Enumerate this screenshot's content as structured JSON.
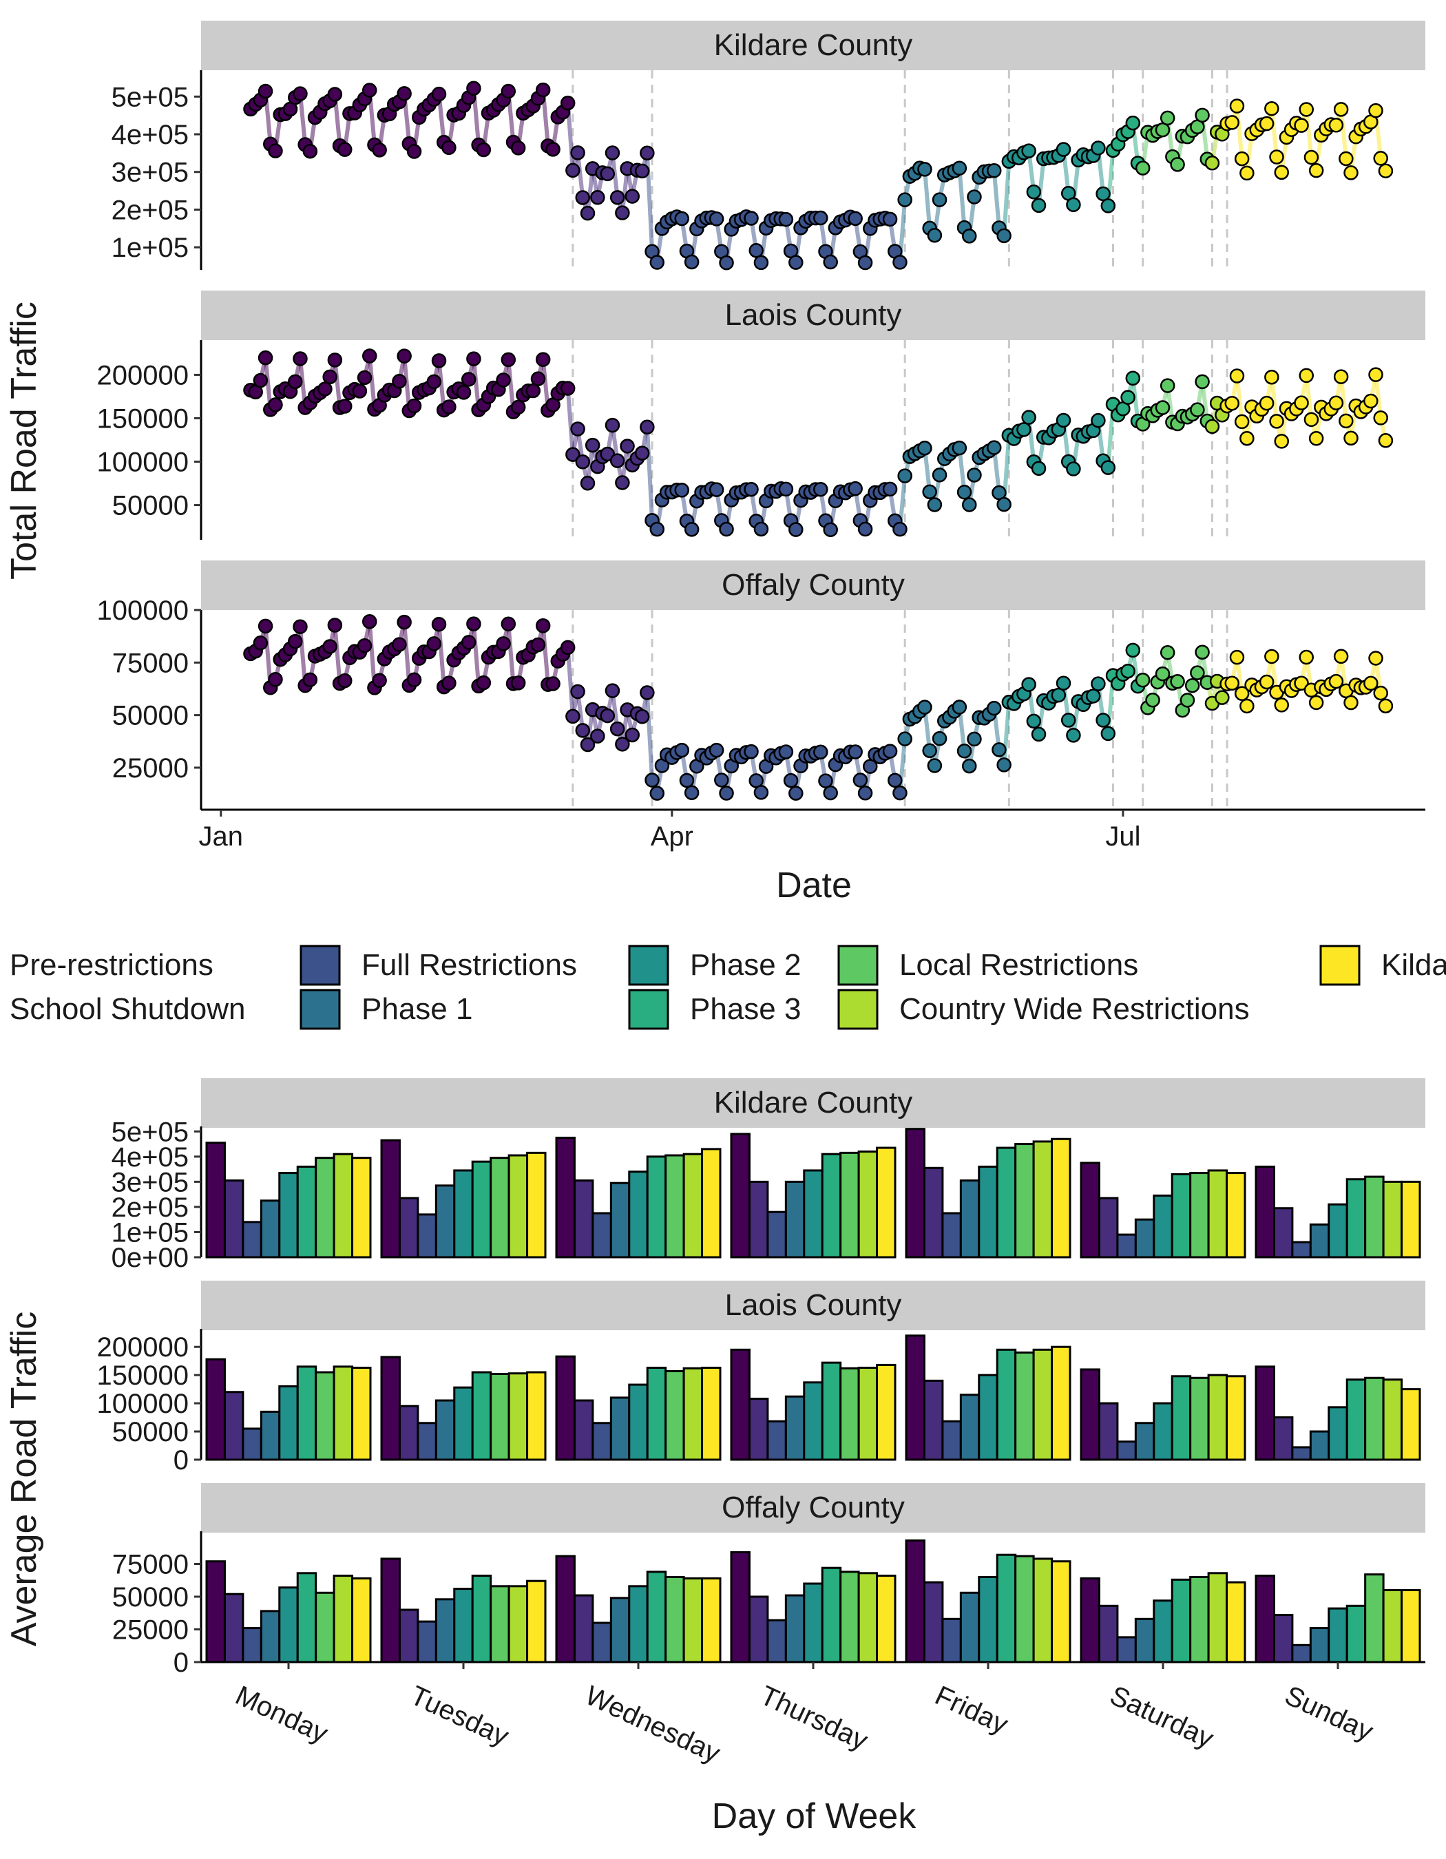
{
  "figure": {
    "top": {
      "y_axis_title": "Total Road Traffic",
      "x_axis_title": "Date",
      "x_ticks": [
        "Jan",
        "Apr",
        "Jul"
      ]
    },
    "bottom": {
      "y_axis_title": "Average Road Traffic",
      "x_axis_title": "Day of Week"
    }
  },
  "colors": {
    "Pre-restrictions": "#440154",
    "School Shutdown": "#472d7b",
    "Full Restrictions": "#3b528b",
    "Phase 1": "#2c728e",
    "Phase 2": "#21918c",
    "Phase 3": "#28ae80",
    "Local Restrictions": "#5ec962",
    "Country Wide Restrictions": "#addc30",
    "Kildare Restrictions": "#fde725",
    "strip_bg": "#cccccc",
    "vline": "#c8c8c8"
  },
  "legend": {
    "items": [
      "Pre-restrictions",
      "School Shutdown",
      "Full Restrictions",
      "Phase 1",
      "Phase 2",
      "Phase 3",
      "Local Restrictions",
      "Country Wide Restrictions",
      "Kildare Restrictions"
    ]
  },
  "chart_data": [
    {
      "type": "line",
      "title": "",
      "facet_by": "county",
      "xlabel": "Date",
      "ylabel": "Total Road Traffic",
      "x_ticks": [
        "Jan",
        "Apr",
        "Jul"
      ],
      "xlim": [
        "2019-12-28",
        "2020-08-31"
      ],
      "phase_boundaries": [
        "2020-03-12",
        "2020-03-28",
        "2020-05-18",
        "2020-06-08",
        "2020-06-29",
        "2020-07-05",
        "2020-07-19",
        "2020-07-22"
      ],
      "phases": [
        {
          "name": "Pre-restrictions",
          "start": "2020-01-07",
          "end": "2020-03-11"
        },
        {
          "name": "School Shutdown",
          "start": "2020-03-12",
          "end": "2020-03-27"
        },
        {
          "name": "Full Restrictions",
          "start": "2020-03-28",
          "end": "2020-05-17"
        },
        {
          "name": "Phase 1",
          "start": "2020-05-18",
          "end": "2020-06-07"
        },
        {
          "name": "Phase 2",
          "start": "2020-06-08",
          "end": "2020-06-28"
        },
        {
          "name": "Phase 3",
          "start": "2020-06-29",
          "end": "2020-07-04"
        },
        {
          "name": "Local Restrictions",
          "start": "2020-07-05",
          "end": "2020-07-18"
        },
        {
          "name": "Country Wide Restrictions",
          "start": "2020-07-19",
          "end": "2020-07-21"
        },
        {
          "name": "Kildare Restrictions",
          "start": "2020-07-22",
          "end": "2020-08-23"
        }
      ],
      "start_date": "2020-01-07",
      "end_date": "2020-08-23",
      "series": [
        {
          "name": "Kildare County",
          "y_ticks": [
            "1e+05",
            "2e+05",
            "3e+05",
            "4e+05",
            "5e+05"
          ],
          "ylim": [
            40000,
            570000
          ],
          "weekday_levels": {
            "Pre-restrictions": [
              450000,
              462000,
              475000,
              490000,
              515000,
              375000,
              360000
            ],
            "School Shutdown": [
              305000,
              235000,
              300000,
              300000,
              345000,
              230000,
              190000
            ],
            "Full Restrictions": [
              150000,
              170000,
              175000,
              178000,
              175000,
              90000,
              60000
            ],
            "Phase 1": [
              230000,
              290000,
              300000,
              305000,
              305000,
              150000,
              130000
            ],
            "Phase 2": [
              330000,
              340000,
              340000,
              345000,
              360000,
              245000,
              210000
            ],
            "Phase 3": [
              360000,
              380000,
              400000,
              410000,
              430000,
              325000,
              305000
            ],
            "Local Restrictions": [
              400000,
              395000,
              405000,
              415000,
              450000,
              335000,
              315000
            ],
            "Country Wide Restrictions": [
              410000,
              400000,
              410000,
              415000,
              460000,
              340000,
              320000
            ],
            "Kildare Restrictions": [
              395000,
              415000,
              425000,
              430000,
              470000,
              335000,
              300000
            ]
          }
        },
        {
          "name": "Laois County",
          "y_ticks": [
            "50000",
            "100000",
            "150000",
            "200000"
          ],
          "ylim": [
            10000,
            240000
          ],
          "weekday_levels": {
            "Pre-restrictions": [
              178000,
              182000,
              183000,
              195000,
              220000,
              160000,
              165000
            ],
            "School Shutdown": [
              120000,
              95000,
              105000,
              108000,
              140000,
              100000,
              75000
            ],
            "Full Restrictions": [
              55000,
              65000,
              65000,
              68000,
              68000,
              32000,
              22000
            ],
            "Phase 1": [
              85000,
              105000,
              110000,
              112000,
              115000,
              65000,
              50000
            ],
            "Phase 2": [
              130000,
              128000,
              133000,
              137000,
              150000,
              100000,
              93000
            ],
            "Phase 3": [
              165000,
              155000,
              163000,
              172000,
              195000,
              148000,
              142000
            ],
            "Local Restrictions": [
              155000,
              152000,
              157000,
              162000,
              190000,
              145000,
              145000
            ],
            "Country Wide Restrictions": [
              165000,
              153000,
              162000,
              163000,
              195000,
              150000,
              142000
            ],
            "Kildare Restrictions": [
              163000,
              155000,
              163000,
              168000,
              200000,
              148000,
              125000
            ]
          }
        },
        {
          "name": "Offaly County",
          "y_ticks": [
            "25000",
            "50000",
            "75000",
            "100000"
          ],
          "ylim": [
            5000,
            100000
          ],
          "weekday_levels": {
            "Pre-restrictions": [
              77000,
              79000,
              81000,
              84000,
              93000,
              64000,
              66000
            ],
            "School Shutdown": [
              52000,
              40000,
              51000,
              50000,
              61000,
              43000,
              36000
            ],
            "Full Restrictions": [
              26000,
              31000,
              30000,
              32000,
              33000,
              19000,
              13000
            ],
            "Phase 1": [
              39000,
              48000,
              49000,
              51000,
              53000,
              33000,
              26000
            ],
            "Phase 2": [
              57000,
              56000,
              58000,
              60000,
              65000,
              47000,
              41000
            ],
            "Phase 3": [
              68000,
              66000,
              69000,
              72000,
              82000,
              63000,
              43000
            ],
            "Local Restrictions": [
              53000,
              58000,
              65000,
              69000,
              81000,
              65000,
              67000
            ],
            "Country Wide Restrictions": [
              66000,
              58000,
              64000,
              68000,
              79000,
              68000,
              55000
            ],
            "Kildare Restrictions": [
              64000,
              62000,
              64000,
              66000,
              77000,
              61000,
              55000
            ]
          }
        }
      ]
    },
    {
      "type": "bar",
      "title": "",
      "facet_by": "county",
      "xlabel": "Day of Week",
      "ylabel": "Average Road Traffic",
      "categories": [
        "Monday",
        "Tuesday",
        "Wednesday",
        "Thursday",
        "Friday",
        "Saturday",
        "Sunday"
      ],
      "groups": [
        "Pre-restrictions",
        "School Shutdown",
        "Full Restrictions",
        "Phase 1",
        "Phase 2",
        "Phase 3",
        "Local Restrictions",
        "Country Wide Restrictions",
        "Kildare Restrictions"
      ],
      "series": [
        {
          "name": "Kildare County",
          "y_ticks": [
            "0e+00",
            "1e+05",
            "2e+05",
            "3e+05",
            "4e+05",
            "5e+05"
          ],
          "ylim": [
            0,
            520000
          ],
          "values": {
            "Monday": [
              455000,
              305000,
              140000,
              225000,
              335000,
              360000,
              395000,
              410000,
              395000
            ],
            "Tuesday": [
              465000,
              235000,
              170000,
              285000,
              345000,
              380000,
              395000,
              405000,
              415000
            ],
            "Wednesday": [
              475000,
              305000,
              175000,
              295000,
              340000,
              400000,
              405000,
              410000,
              430000
            ],
            "Thursday": [
              490000,
              300000,
              180000,
              300000,
              345000,
              410000,
              415000,
              420000,
              435000
            ],
            "Friday": [
              510000,
              355000,
              175000,
              305000,
              360000,
              435000,
              450000,
              460000,
              470000
            ],
            "Saturday": [
              375000,
              235000,
              90000,
              150000,
              245000,
              330000,
              335000,
              345000,
              335000
            ],
            "Sunday": [
              360000,
              195000,
              60000,
              130000,
              210000,
              310000,
              320000,
              300000,
              300000
            ]
          }
        },
        {
          "name": "Laois County",
          "y_ticks": [
            "0",
            "50000",
            "100000",
            "150000",
            "200000"
          ],
          "ylim": [
            0,
            232000
          ],
          "values": {
            "Monday": [
              178000,
              120000,
              55000,
              85000,
              130000,
              165000,
              155000,
              165000,
              163000
            ],
            "Tuesday": [
              182000,
              95000,
              65000,
              105000,
              128000,
              155000,
              152000,
              153000,
              155000
            ],
            "Wednesday": [
              183000,
              105000,
              65000,
              110000,
              133000,
              163000,
              157000,
              162000,
              163000
            ],
            "Thursday": [
              195000,
              108000,
              68000,
              112000,
              137000,
              172000,
              162000,
              163000,
              168000
            ],
            "Friday": [
              220000,
              140000,
              68000,
              115000,
              150000,
              195000,
              190000,
              195000,
              200000
            ],
            "Saturday": [
              160000,
              100000,
              32000,
              65000,
              100000,
              148000,
              145000,
              150000,
              148000
            ],
            "Sunday": [
              165000,
              75000,
              22000,
              50000,
              93000,
              142000,
              145000,
              142000,
              125000
            ]
          }
        },
        {
          "name": "Offaly County",
          "y_ticks": [
            "0",
            "25000",
            "50000",
            "75000"
          ],
          "ylim": [
            0,
            100000
          ],
          "values": {
            "Monday": [
              77000,
              52000,
              26000,
              39000,
              57000,
              68000,
              53000,
              66000,
              64000
            ],
            "Tuesday": [
              79000,
              40000,
              31000,
              48000,
              56000,
              66000,
              58000,
              58000,
              62000
            ],
            "Wednesday": [
              81000,
              51000,
              30000,
              49000,
              58000,
              69000,
              65000,
              64000,
              64000
            ],
            "Thursday": [
              84000,
              50000,
              32000,
              51000,
              60000,
              72000,
              69000,
              68000,
              66000
            ],
            "Friday": [
              93000,
              61000,
              33000,
              53000,
              65000,
              82000,
              81000,
              79000,
              77000
            ],
            "Saturday": [
              64000,
              43000,
              19000,
              33000,
              47000,
              63000,
              65000,
              68000,
              61000
            ],
            "Sunday": [
              66000,
              36000,
              13000,
              26000,
              41000,
              43000,
              67000,
              55000,
              55000
            ]
          }
        }
      ]
    }
  ]
}
